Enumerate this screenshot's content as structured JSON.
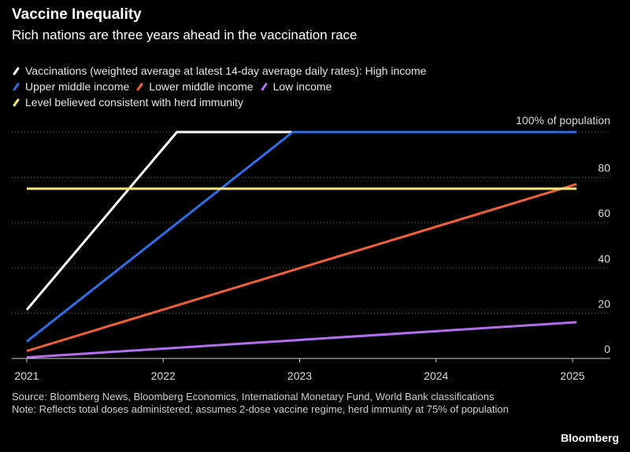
{
  "header": {
    "title": "Vaccine Inequality",
    "subtitle": "Rich nations are three years ahead in the vaccination race"
  },
  "legend": {
    "row1": [
      {
        "label": "Vaccinations (weighted average at latest 14-day average daily rates): High income",
        "color": "#ffffff"
      }
    ],
    "row2": [
      {
        "label": "Upper middle income",
        "color": "#2f6fe6"
      },
      {
        "label": "Lower middle income",
        "color": "#f2603a"
      },
      {
        "label": "Low income",
        "color": "#b46ff0"
      }
    ],
    "row3": [
      {
        "label": "Level believed consistent with herd immunity",
        "color": "#fbe77a"
      }
    ]
  },
  "chart_data": {
    "type": "line",
    "xlim": [
      2021,
      2025.25
    ],
    "ylim": [
      0,
      100
    ],
    "x_ticks": [
      {
        "value": 2021,
        "label": "2021"
      },
      {
        "value": 2022,
        "label": "2022"
      },
      {
        "value": 2023,
        "label": "2023"
      },
      {
        "value": 2024,
        "label": "2024"
      },
      {
        "value": 2025,
        "label": "2025"
      }
    ],
    "y_ticks": [
      {
        "value": 0,
        "label": "0"
      },
      {
        "value": 20,
        "label": "20"
      },
      {
        "value": 40,
        "label": "40"
      },
      {
        "value": 60,
        "label": "60"
      },
      {
        "value": 80,
        "label": "80"
      },
      {
        "value": 100,
        "label": "100% of population"
      }
    ],
    "grid": true,
    "series": [
      {
        "name": "High income",
        "color": "#ffffff",
        "points": [
          [
            2021.0,
            21.5
          ],
          [
            2022.1,
            100
          ],
          [
            2022.95,
            100
          ]
        ]
      },
      {
        "name": "Upper middle income",
        "color": "#2f6fe6",
        "points": [
          [
            2021.0,
            7.5
          ],
          [
            2022.95,
            100
          ],
          [
            2025.03,
            100
          ]
        ]
      },
      {
        "name": "Lower middle income",
        "color": "#f2603a",
        "points": [
          [
            2021.0,
            3.3
          ],
          [
            2025.03,
            77
          ]
        ]
      },
      {
        "name": "Low income",
        "color": "#b46ff0",
        "points": [
          [
            2021.0,
            0.5
          ],
          [
            2025.03,
            16
          ]
        ]
      },
      {
        "name": "Herd immunity level",
        "color": "#fbe77a",
        "points": [
          [
            2021.0,
            75
          ],
          [
            2025.03,
            75
          ]
        ]
      }
    ]
  },
  "footer": {
    "source": "Source: Bloomberg News, Bloomberg Economics, International Monetary Fund, World Bank classifications",
    "note": "Note: Reflects total doses administered; assumes 2-dose vaccine regime, herd immunity at 75% of population",
    "brand": "Bloomberg"
  }
}
